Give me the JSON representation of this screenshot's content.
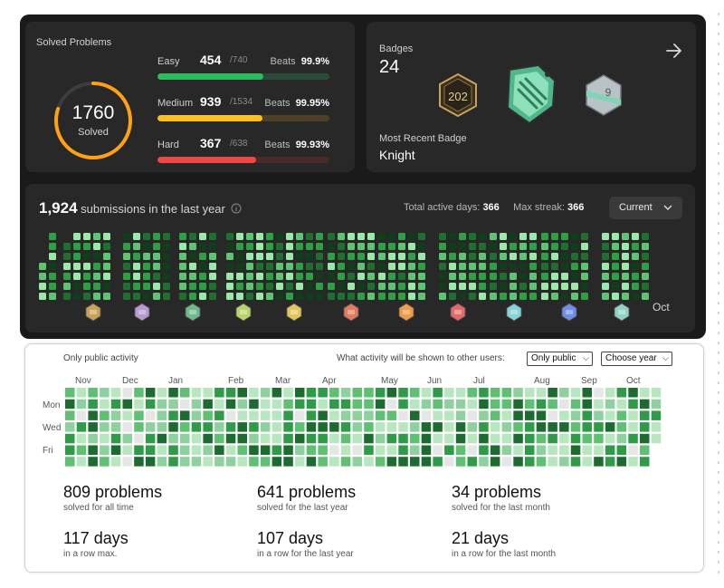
{
  "solved": {
    "title": "Solved Problems",
    "total": "1760",
    "total_label": "Solved",
    "ring_fraction": 0.8,
    "difficulties": [
      {
        "name": "Easy",
        "count": "454",
        "total": "/740",
        "beats_label": "Beats",
        "beats_value": "99.9%",
        "fraction": 0.614,
        "color": "#2cbb5d",
        "track": "#2a4a3a"
      },
      {
        "name": "Medium",
        "count": "939",
        "total": "/1534",
        "beats_label": "Beats",
        "beats_value": "99.95%",
        "fraction": 0.612,
        "color": "#ffc01e",
        "track": "#4d4024"
      },
      {
        "name": "Hard",
        "count": "367",
        "total": "/638",
        "beats_label": "Beats",
        "beats_value": "99.93%",
        "fraction": 0.575,
        "color": "#ef4743",
        "track": "#4b2a2a"
      }
    ]
  },
  "badges": {
    "title": "Badges",
    "count": "24",
    "arrow_icon": "arrow-right-icon",
    "most_recent_label": "Most Recent Badge",
    "most_recent_name": "Knight"
  },
  "submissions": {
    "count": "1,924",
    "text": "submissions in the last year",
    "info_icon": "info-icon",
    "active_days_label": "Total active days:",
    "active_days": "366",
    "max_streak_label": "Max streak:",
    "max_streak": "366",
    "period_select": "Current",
    "last_month_label": "Oct"
  },
  "activity": {
    "visibility_label": "Only public activity",
    "question": "What activity will be shown to other users:",
    "visibility_select": "Only public",
    "year_select": "Choose year",
    "months": [
      "Nov",
      "Dec",
      "Jan",
      "Feb",
      "Mar",
      "Apr",
      "May",
      "Jun",
      "Jul",
      "Aug",
      "Sep",
      "Oct"
    ],
    "weekdays": [
      "Mon",
      "Wed",
      "Fri"
    ],
    "stats": [
      {
        "number": "809 problems",
        "sub": "solved for all time"
      },
      {
        "number": "641 problems",
        "sub": "solved for the last year"
      },
      {
        "number": "34 problems",
        "sub": "solved for the last month"
      },
      {
        "number": "117 days",
        "sub": "in a row max."
      },
      {
        "number": "107 days",
        "sub": "in a row for the last year"
      },
      {
        "number": "21 days",
        "sub": "in a row for the last month"
      }
    ]
  },
  "colors": {
    "easy": "#2cbb5d",
    "medium": "#ffc01e",
    "hard": "#ef4743",
    "ring": "#ffa116"
  }
}
